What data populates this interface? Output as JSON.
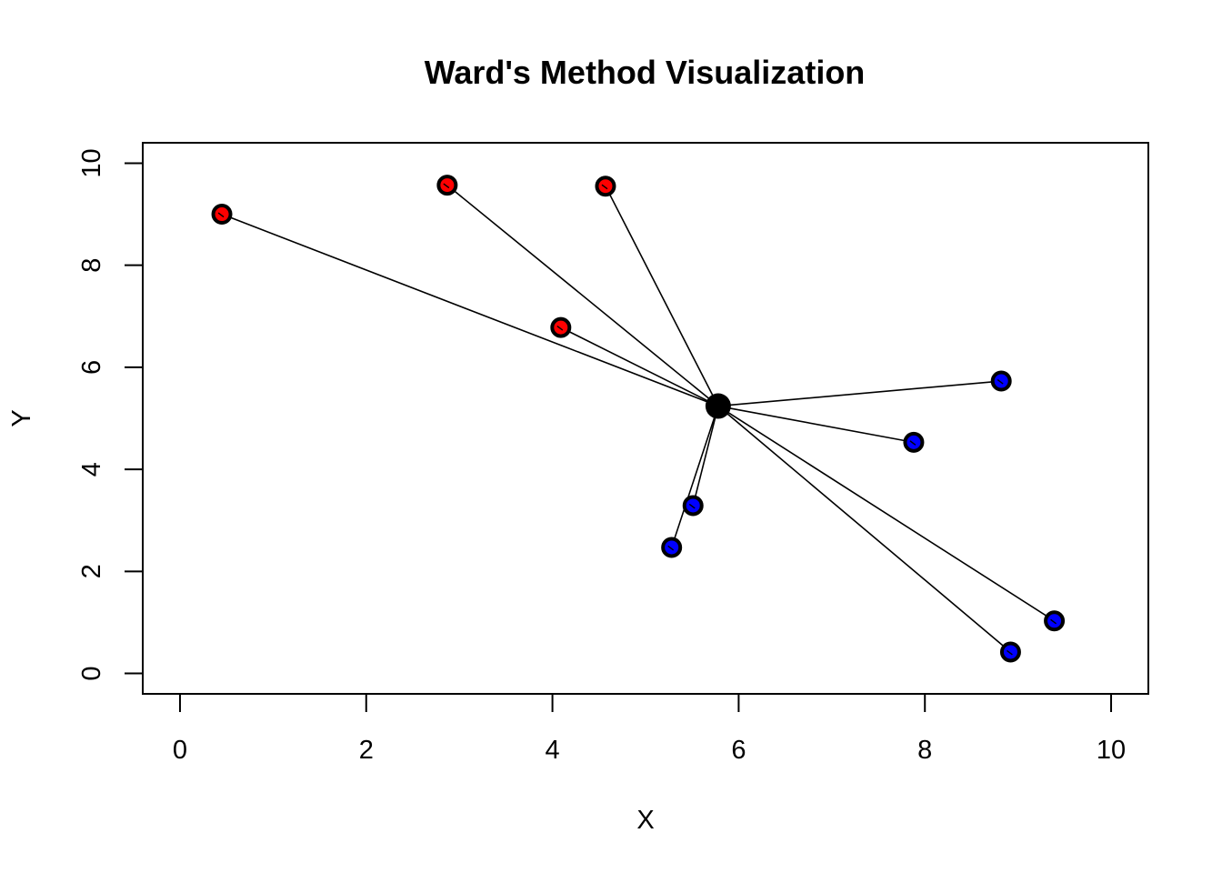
{
  "chart_data": {
    "type": "scatter",
    "title": "Ward's Method Visualization",
    "xlabel": "X",
    "ylabel": "Y",
    "xlim": [
      -0.4,
      10.4
    ],
    "ylim": [
      -0.4,
      10.4
    ],
    "x_ticks": [
      "0",
      "2",
      "4",
      "6",
      "8",
      "10"
    ],
    "y_ticks": [
      "0",
      "2",
      "4",
      "6",
      "8",
      "10"
    ],
    "grid": false,
    "legend": "none",
    "centroid": {
      "x": 5.78,
      "y": 5.24,
      "color": "#000000"
    },
    "series": [
      {
        "color": "#ff0000",
        "points": [
          {
            "x": 0.45,
            "y": 9.0
          },
          {
            "x": 2.87,
            "y": 9.57
          },
          {
            "x": 4.57,
            "y": 9.55
          },
          {
            "x": 4.09,
            "y": 6.78
          }
        ]
      },
      {
        "color": "#0000ff",
        "points": [
          {
            "x": 8.82,
            "y": 5.73
          },
          {
            "x": 7.88,
            "y": 4.53
          },
          {
            "x": 5.51,
            "y": 3.29
          },
          {
            "x": 5.28,
            "y": 2.47
          },
          {
            "x": 9.39,
            "y": 1.03
          },
          {
            "x": 8.92,
            "y": 0.42
          }
        ]
      }
    ]
  }
}
